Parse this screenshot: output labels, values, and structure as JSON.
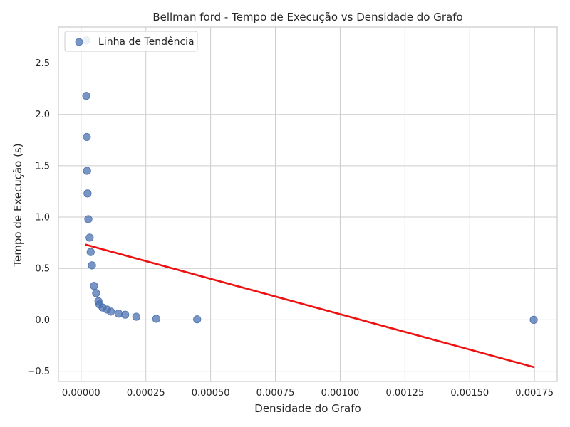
{
  "chart_data": {
    "type": "scatter",
    "title": "Bellman ford - Tempo de Execução vs Densidade do Grafo",
    "xlabel": "Densidade do Grafo",
    "ylabel": "Tempo de Execução (s)",
    "xlim": [
      -8.75e-05,
      0.0018375
    ],
    "ylim": [
      -0.6,
      2.85
    ],
    "xticks": [
      0.0,
      0.00025,
      0.0005,
      0.00075,
      0.001,
      0.00125,
      0.0015,
      0.00175
    ],
    "xtick_labels": [
      "0.00000",
      "0.00025",
      "0.00050",
      "0.00075",
      "0.00100",
      "0.00125",
      "0.00150",
      "0.00175"
    ],
    "yticks": [
      -0.5,
      0.0,
      0.5,
      1.0,
      1.5,
      2.0,
      2.5
    ],
    "ytick_labels": [
      "−0.5",
      "0.0",
      "0.5",
      "1.0",
      "1.5",
      "2.0",
      "2.5"
    ],
    "grid": true,
    "legend_position": "top-left",
    "series": [
      {
        "name": "Linha de Tendência",
        "kind": "scatter",
        "color": "#4c72b0",
        "points": [
          {
            "x": 2e-05,
            "y": 2.72
          },
          {
            "x": 2e-05,
            "y": 2.18
          },
          {
            "x": 2.2e-05,
            "y": 1.78
          },
          {
            "x": 2.3e-05,
            "y": 1.45
          },
          {
            "x": 2.5e-05,
            "y": 1.23
          },
          {
            "x": 2.8e-05,
            "y": 0.98
          },
          {
            "x": 3.3e-05,
            "y": 0.8
          },
          {
            "x": 3.7e-05,
            "y": 0.66
          },
          {
            "x": 4.2e-05,
            "y": 0.53
          },
          {
            "x": 5e-05,
            "y": 0.33
          },
          {
            "x": 5.8e-05,
            "y": 0.26
          },
          {
            "x": 6.7e-05,
            "y": 0.18
          },
          {
            "x": 7.1e-05,
            "y": 0.15
          },
          {
            "x": 8.3e-05,
            "y": 0.12
          },
          {
            "x": 0.0001,
            "y": 0.1
          },
          {
            "x": 0.000115,
            "y": 0.08
          },
          {
            "x": 0.000145,
            "y": 0.06
          },
          {
            "x": 0.00017,
            "y": 0.05
          },
          {
            "x": 0.000213,
            "y": 0.03
          },
          {
            "x": 0.00029,
            "y": 0.01
          },
          {
            "x": 0.000448,
            "y": 0.005
          },
          {
            "x": 0.001747,
            "y": 0.0
          }
        ]
      }
    ],
    "trendline": {
      "kind": "line",
      "color": "#ee1111",
      "points": [
        {
          "x": 2e-05,
          "y": 0.73
        },
        {
          "x": 0.001747,
          "y": -0.46
        }
      ]
    }
  }
}
